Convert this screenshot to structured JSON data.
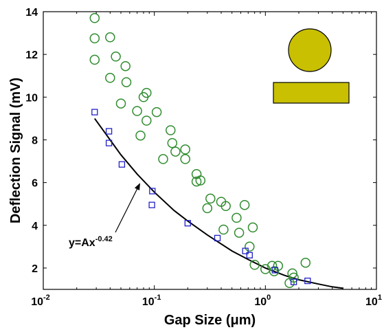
{
  "chart_data": {
    "type": "scatter",
    "xscale": "log",
    "xlim": [
      0.01,
      10
    ],
    "ylim": [
      1,
      14
    ],
    "xlabel": "Gap Size (μm)",
    "ylabel": "Deflection Signal (mV)",
    "x_ticks": [
      {
        "value": 0.01,
        "base": "10",
        "exp": "-2"
      },
      {
        "value": 0.1,
        "base": "10",
        "exp": "-1"
      },
      {
        "value": 1,
        "base": "10",
        "exp": "0"
      },
      {
        "value": 10,
        "base": "10",
        "exp": "1"
      }
    ],
    "y_ticks": [
      2,
      4,
      6,
      8,
      10,
      12,
      14
    ],
    "grid": false,
    "series": [
      {
        "marker": "circle",
        "color": "#2e8b2e",
        "points": [
          [
            0.029,
            13.7
          ],
          [
            0.029,
            12.75
          ],
          [
            0.029,
            11.75
          ],
          [
            0.04,
            12.8
          ],
          [
            0.045,
            11.9
          ],
          [
            0.04,
            10.9
          ],
          [
            0.055,
            11.45
          ],
          [
            0.056,
            10.7
          ],
          [
            0.05,
            9.7
          ],
          [
            0.07,
            9.35
          ],
          [
            0.08,
            10.0
          ],
          [
            0.085,
            10.2
          ],
          [
            0.085,
            8.9
          ],
          [
            0.075,
            8.2
          ],
          [
            0.105,
            9.3
          ],
          [
            0.14,
            8.45
          ],
          [
            0.145,
            7.85
          ],
          [
            0.155,
            7.45
          ],
          [
            0.12,
            7.1
          ],
          [
            0.19,
            7.55
          ],
          [
            0.19,
            7.1
          ],
          [
            0.24,
            6.4
          ],
          [
            0.24,
            6.05
          ],
          [
            0.26,
            6.1
          ],
          [
            0.3,
            4.8
          ],
          [
            0.32,
            5.25
          ],
          [
            0.4,
            5.1
          ],
          [
            0.44,
            4.9
          ],
          [
            0.42,
            3.8
          ],
          [
            0.55,
            4.35
          ],
          [
            0.58,
            3.65
          ],
          [
            0.65,
            4.95
          ],
          [
            0.72,
            3.0
          ],
          [
            0.77,
            3.9
          ],
          [
            0.8,
            2.15
          ],
          [
            1.0,
            1.95
          ],
          [
            1.15,
            2.1
          ],
          [
            1.3,
            2.1
          ],
          [
            1.2,
            1.85
          ],
          [
            1.65,
            1.3
          ],
          [
            1.8,
            1.55
          ],
          [
            1.75,
            1.75
          ],
          [
            2.3,
            2.25
          ]
        ]
      },
      {
        "marker": "square",
        "color": "#2020c8",
        "points": [
          [
            0.029,
            9.3
          ],
          [
            0.039,
            8.4
          ],
          [
            0.039,
            7.85
          ],
          [
            0.051,
            6.85
          ],
          [
            0.096,
            5.6
          ],
          [
            0.095,
            4.95
          ],
          [
            0.2,
            4.1
          ],
          [
            0.37,
            3.4
          ],
          [
            0.66,
            2.8
          ],
          [
            0.72,
            2.6
          ],
          [
            1.22,
            1.9
          ],
          [
            1.8,
            1.35
          ],
          [
            2.4,
            1.4
          ]
        ]
      }
    ],
    "fit_curve": {
      "color": "#000000",
      "x_range": [
        0.029,
        5.0
      ],
      "points": [
        [
          0.029,
          9.0
        ],
        [
          0.04,
          8.0
        ],
        [
          0.05,
          7.3
        ],
        [
          0.07,
          6.4
        ],
        [
          0.1,
          5.55
        ],
        [
          0.15,
          4.7
        ],
        [
          0.2,
          4.2
        ],
        [
          0.3,
          3.55
        ],
        [
          0.5,
          2.8
        ],
        [
          0.7,
          2.4
        ],
        [
          1.0,
          2.0
        ],
        [
          1.5,
          1.65
        ],
        [
          2.0,
          1.45
        ],
        [
          3.0,
          1.25
        ],
        [
          4.0,
          1.12
        ],
        [
          5.0,
          1.05
        ]
      ]
    },
    "annotation": {
      "text": "y=Ax",
      "superscript": "-0.42",
      "arrow_to": [
        0.074,
        5.95
      ]
    },
    "inset": {
      "shapes": [
        "circle",
        "rectangle"
      ],
      "fill": "#c8c000",
      "stroke": "#000000"
    }
  }
}
